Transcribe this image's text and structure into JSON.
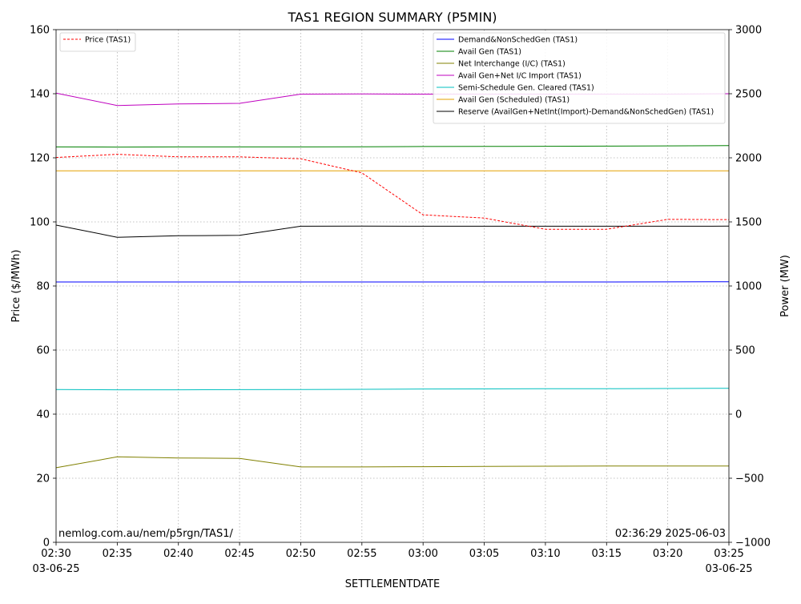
{
  "chart_data": {
    "type": "line",
    "title": "TAS1 REGION SUMMARY (P5MIN)",
    "xlabel": "SETTLEMENTDATE",
    "ylabel_left": "Price ($/MWh)",
    "ylabel_right": "Power (MW)",
    "x": [
      "02:30",
      "02:35",
      "02:40",
      "02:45",
      "02:50",
      "02:55",
      "03:00",
      "03:05",
      "03:10",
      "03:15",
      "03:20",
      "03:25"
    ],
    "x_date_start": "03-06-25",
    "x_date_end": "03-06-25",
    "ylim_left": [
      0,
      160
    ],
    "yticks_left": [
      0,
      20,
      40,
      60,
      80,
      100,
      120,
      140,
      160
    ],
    "ylim_right": [
      -1000,
      3000
    ],
    "yticks_right": [
      -1000,
      -500,
      0,
      500,
      1000,
      1500,
      2000,
      2500,
      3000
    ],
    "grid": true,
    "legend_left_placement": "top-left",
    "legend_right_placement": "top-right",
    "footer_left": "nemlog.com.au/nem/p5rgn/TAS1/",
    "footer_right": "02:36:29 2025-06-03",
    "left_series": [
      {
        "name": "Price (TAS1)",
        "color": "#ff0000",
        "dashed": true,
        "values": [
          120.1,
          121.1,
          120.3,
          120.3,
          119.7,
          115.3,
          102.2,
          101.2,
          97.7,
          97.7,
          100.8,
          100.7
        ]
      }
    ],
    "right_series": [
      {
        "name": "Demand&NonSchedGen (TAS1)",
        "color": "#0000ff",
        "values": [
          1031,
          1031,
          1031,
          1031,
          1031,
          1031,
          1031,
          1031,
          1031,
          1031,
          1032,
          1033
        ]
      },
      {
        "name": "Avail Gen (TAS1)",
        "color": "#008000",
        "values": [
          2085,
          2084,
          2085,
          2085,
          2085,
          2086,
          2088,
          2089,
          2090,
          2091,
          2093,
          2095
        ]
      },
      {
        "name": "Net Interchange (I/C) (TAS1)",
        "color": "#808000",
        "values": [
          -418,
          -333,
          -342,
          -345,
          -412,
          -412,
          -410,
          -408,
          -406,
          -405,
          -405,
          -405
        ]
      },
      {
        "name": "Avail Gen+Net I/C Import (TAS1)",
        "color": "#bf00bf",
        "values": [
          2505,
          2408,
          2420,
          2425,
          2497,
          2498,
          2497,
          2497,
          2497,
          2497,
          2497,
          2500
        ]
      },
      {
        "name": "Semi-Schedule Gen. Cleared (TAS1)",
        "color": "#00bfbf",
        "values": [
          192,
          190,
          190,
          191,
          192,
          194,
          196,
          197,
          198,
          199,
          200,
          202
        ]
      },
      {
        "name": "Avail Gen (Scheduled) (TAS1)",
        "color": "#e6a000",
        "values": [
          1898,
          1898,
          1898,
          1898,
          1898,
          1898,
          1898,
          1898,
          1898,
          1898,
          1898,
          1898
        ]
      },
      {
        "name": "Reserve (AvailGen+NetInt(Import)-Demand&NonSchedGen) (TAS1)",
        "color": "#000000",
        "values": [
          1475,
          1380,
          1392,
          1395,
          1466,
          1467,
          1466,
          1466,
          1466,
          1466,
          1466,
          1467
        ]
      }
    ]
  }
}
